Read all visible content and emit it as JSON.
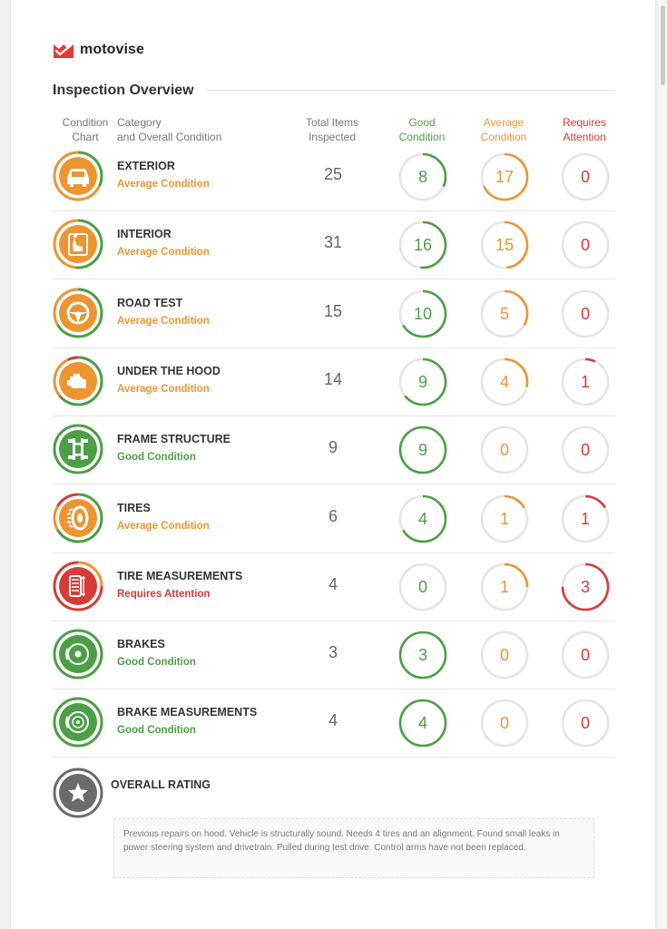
{
  "brand": {
    "name": "motovise",
    "color": "#e33b33"
  },
  "title": "Inspection Overview",
  "headers": {
    "chart": [
      "Condition",
      "Chart"
    ],
    "category": [
      "Category",
      "and Overall Condition"
    ],
    "total": [
      "Total Items",
      "Inspected"
    ],
    "good": [
      "Good",
      "Condition"
    ],
    "average": [
      "Average",
      "Condition"
    ],
    "requires": [
      "Requires",
      "Attention"
    ]
  },
  "colors": {
    "good": "#4c9f46",
    "average": "#ec9531",
    "requires": "#d63b37",
    "track": "#e4e4e4",
    "overall": "#6b6b6b"
  },
  "rows": [
    {
      "name": "EXTERIOR",
      "condition": "Average Condition",
      "status": "average",
      "icon": "car-icon",
      "total": "25",
      "good": "8",
      "average": "17",
      "requires": "0"
    },
    {
      "name": "INTERIOR",
      "condition": "Average Condition",
      "status": "average",
      "icon": "seat-icon",
      "total": "31",
      "good": "16",
      "average": "15",
      "requires": "0"
    },
    {
      "name": "ROAD TEST",
      "condition": "Average Condition",
      "status": "average",
      "icon": "steering-wheel-icon",
      "total": "15",
      "good": "10",
      "average": "5",
      "requires": "0"
    },
    {
      "name": "UNDER THE HOOD",
      "condition": "Average Condition",
      "status": "average",
      "icon": "engine-icon",
      "total": "14",
      "good": "9",
      "average": "4",
      "requires": "1"
    },
    {
      "name": "FRAME STRUCTURE",
      "condition": "Good Condition",
      "status": "good",
      "icon": "frame-icon",
      "total": "9",
      "good": "9",
      "average": "0",
      "requires": "0"
    },
    {
      "name": "TIRES",
      "condition": "Average Condition",
      "status": "average",
      "icon": "tire-icon",
      "total": "6",
      "good": "4",
      "average": "1",
      "requires": "1"
    },
    {
      "name": "TIRE MEASUREMENTS",
      "condition": "Requires Attention",
      "status": "requires",
      "icon": "tire-tread-icon",
      "total": "4",
      "good": "0",
      "average": "1",
      "requires": "3"
    },
    {
      "name": "BRAKES",
      "condition": "Good Condition",
      "status": "good",
      "icon": "brake-icon",
      "total": "3",
      "good": "3",
      "average": "0",
      "requires": "0"
    },
    {
      "name": "BRAKE MEASUREMENTS",
      "condition": "Good Condition",
      "status": "good",
      "icon": "brake-disc-icon",
      "total": "4",
      "good": "4",
      "average": "0",
      "requires": "0"
    }
  ],
  "overall": {
    "label": "OVERALL RATING",
    "icon": "star-icon",
    "notes": "Previous repairs on hood. Vehicle is structurally sound. Needs 4 tires and an alignment. Found small leaks in power steering system and drivetrain. Pulled during test drive. Control arms have not been replaced."
  }
}
